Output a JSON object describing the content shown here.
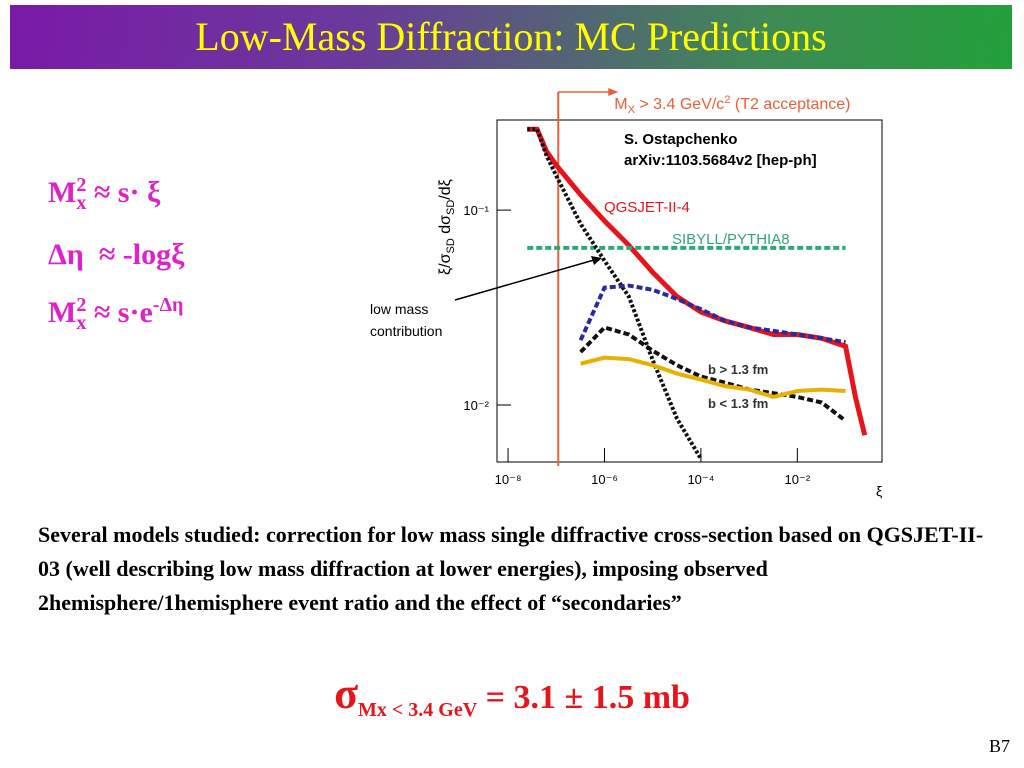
{
  "title": "Low-Mass Diffraction: MC Predictions",
  "formulas": [
    [
      "M",
      "x",
      "2",
      " ≈ s· ξ"
    ],
    [
      "Δη  ≈ -logξ"
    ],
    [
      "M",
      "x",
      "2",
      " ≈ s·e",
      "-Δη"
    ]
  ],
  "body": "Several models studied: correction for low mass single diffractive cross-section based on QGSJET-II-03 (well describing low mass diffraction at lower energies), imposing observed 2hemisphere/1hemisphere event ratio and the effect of “secondaries”",
  "result": [
    "σ",
    "Mx < 3.4 GeV",
    " = 3.1 ± 1.5 mb"
  ],
  "page_number": "B7",
  "chart_data": {
    "type": "line",
    "xlabel": "ξ",
    "ylabel": [
      "ξ/σ",
      "SD",
      " dσ",
      "SD",
      "/dξ"
    ],
    "annotations": [
      "S. Ostapchenko",
      "arXiv:1103.5684v2 [hep-ph]",
      "low mass",
      "contribution"
    ],
    "threshold": {
      "label": [
        "M",
        "X",
        " > 3.4 GeV/c",
        "2",
        " (T2 acceptance)"
      ],
      "x": 1.1e-07,
      "color": "#e8603a"
    },
    "xlog": true,
    "ylog": true,
    "xlim": [
      5.9e-09,
      0.57
    ],
    "ylim": [
      0.0051,
      0.29
    ],
    "xticks": [
      {
        "value": 1e-08,
        "label": "10⁻⁸"
      },
      {
        "value": 1e-06,
        "label": "10⁻⁶"
      },
      {
        "value": 0.0001,
        "label": "10⁻⁴"
      },
      {
        "value": 0.01,
        "label": "10⁻²"
      }
    ],
    "yticks": [
      {
        "value": 0.1,
        "label": "10⁻¹"
      },
      {
        "value": 0.01,
        "label": "10⁻²"
      }
    ],
    "x": [
      2.5e-08,
      4e-08,
      6.3e-08,
      1e-07,
      3.2e-07,
      1e-06,
      3.2e-06,
      1e-05,
      3.2e-05,
      0.0001,
      0.00032,
      0.001,
      0.0032,
      0.01,
      0.032,
      0.1,
      0.16,
      0.25
    ],
    "series": [
      {
        "name": "QGSJET-II-4",
        "color": "#e8141c",
        "style": "solid",
        "values": [
          0.26,
          0.26,
          0.2,
          0.17,
          0.12,
          0.088,
          0.066,
          0.048,
          0.036,
          0.03,
          0.027,
          0.025,
          0.023,
          0.023,
          0.022,
          0.02,
          0.011,
          0.007
        ]
      },
      {
        "name": "SIBYLL/PYTHIA8",
        "color": "#2fa878",
        "style": "dashed",
        "values": [
          0.064,
          0.064,
          0.064,
          0.064,
          0.064,
          0.064,
          0.064,
          0.064,
          0.064,
          0.064,
          0.064,
          0.064,
          0.064,
          0.064,
          0.064,
          0.064,
          null,
          null
        ]
      },
      {
        "color": "#111111",
        "style": "dotted",
        "values": [
          0.26,
          0.26,
          0.19,
          0.15,
          0.085,
          0.055,
          0.036,
          0.017,
          0.0085,
          0.0053,
          null,
          null,
          null,
          null,
          null,
          null,
          null,
          null
        ]
      },
      {
        "color": "#2a2aa0",
        "style": "dashed",
        "values": [
          null,
          null,
          null,
          null,
          0.0215,
          0.04,
          0.041,
          0.039,
          0.035,
          0.031,
          0.027,
          0.025,
          0.024,
          0.023,
          0.022,
          0.021,
          null,
          null
        ]
      },
      {
        "name": "b < 1.3 fm",
        "color": "#111111",
        "style": "dashed",
        "values": [
          null,
          null,
          null,
          null,
          0.0187,
          0.025,
          0.023,
          0.019,
          0.016,
          0.014,
          0.013,
          0.012,
          0.0115,
          0.011,
          0.0103,
          0.0083,
          null,
          null
        ]
      },
      {
        "name": "b > 1.3 fm",
        "color": "#e8b000",
        "style": "solid",
        "values": [
          null,
          null,
          null,
          null,
          0.0163,
          0.0175,
          0.0172,
          0.016,
          0.0145,
          0.0135,
          0.0125,
          0.012,
          0.011,
          0.0118,
          0.012,
          0.0118,
          null,
          null
        ]
      }
    ]
  }
}
